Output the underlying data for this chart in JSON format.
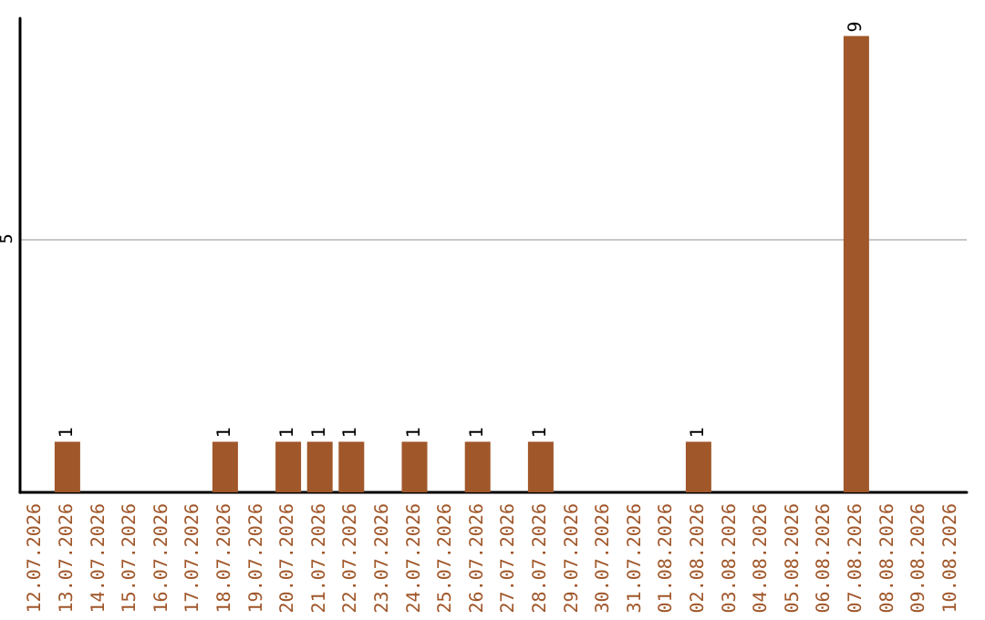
{
  "chart_data": {
    "type": "bar",
    "categories": [
      "12.07.2026",
      "13.07.2026",
      "14.07.2026",
      "15.07.2026",
      "16.07.2026",
      "17.07.2026",
      "18.07.2026",
      "19.07.2026",
      "20.07.2026",
      "21.07.2026",
      "22.07.2026",
      "23.07.2026",
      "24.07.2026",
      "25.07.2026",
      "26.07.2026",
      "27.07.2026",
      "28.07.2026",
      "29.07.2026",
      "30.07.2026",
      "31.07.2026",
      "01.08.2026",
      "02.08.2026",
      "03.08.2026",
      "04.08.2026",
      "05.08.2026",
      "06.08.2026",
      "07.08.2026",
      "08.08.2026",
      "09.08.2026",
      "10.08.2026"
    ],
    "values": [
      0,
      1,
      0,
      0,
      0,
      0,
      1,
      0,
      1,
      1,
      1,
      0,
      1,
      0,
      1,
      0,
      1,
      0,
      0,
      0,
      0,
      1,
      0,
      0,
      0,
      0,
      9,
      0,
      0,
      0
    ],
    "value_labels": [
      null,
      "1",
      null,
      null,
      null,
      null,
      "1",
      null,
      "1",
      "1",
      "1",
      null,
      "1",
      null,
      "1",
      null,
      "1",
      null,
      null,
      null,
      null,
      "1",
      null,
      null,
      null,
      null,
      "9",
      null,
      null,
      null
    ],
    "color": "#a0572a",
    "ylim": [
      0,
      9.35
    ],
    "yticks": [
      5
    ],
    "grid": "y"
  }
}
